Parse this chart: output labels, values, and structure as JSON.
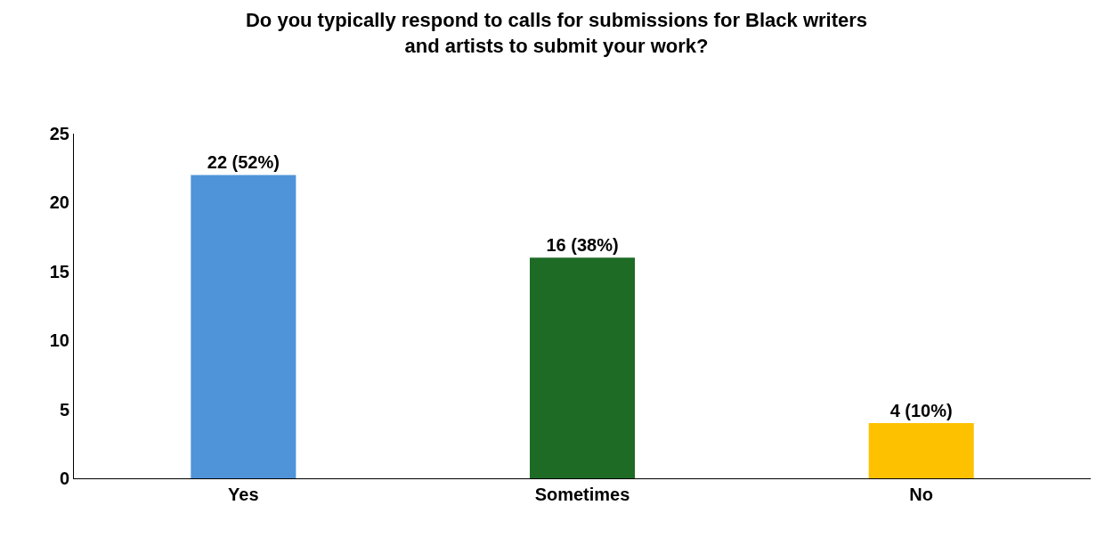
{
  "chart_data": {
    "type": "bar",
    "title": "Do you typically respond to calls for submissions for Black writers and artists to submit your work?",
    "categories": [
      "Yes",
      "Sometimes",
      "No"
    ],
    "values": [
      22,
      16,
      4
    ],
    "colors": [
      "#4f93d8",
      "#1d6b25",
      "#fdc100"
    ],
    "value_labels": [
      "22 (52%)",
      "16 (38%)",
      "4 (10%)"
    ],
    "ylim": [
      0,
      25
    ],
    "yticks": [
      0,
      5,
      10,
      15,
      20,
      25
    ]
  }
}
